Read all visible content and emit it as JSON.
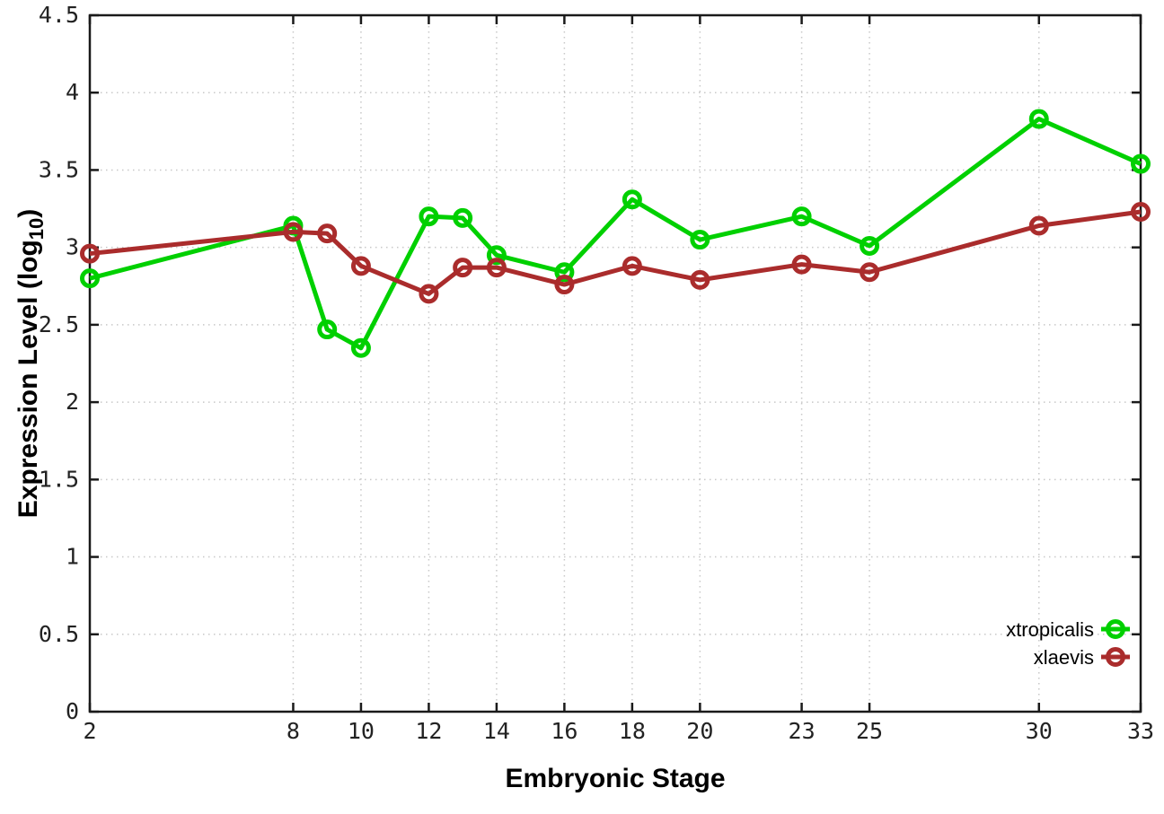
{
  "page": {
    "background": "#ffffff"
  },
  "chart_data": {
    "type": "line",
    "title": "",
    "xlabel": "Embryonic Stage",
    "ylabel": {
      "prefix": "Expression Level (log",
      "subscript": "10",
      "suffix": ")"
    },
    "xlim": [
      2,
      33
    ],
    "ylim": [
      0,
      4.5
    ],
    "grid": true,
    "grid_color": "#c8c8c8",
    "axis_color": "#1a1a1a",
    "xticks": {
      "values": [
        2,
        8,
        10,
        12,
        14,
        16,
        18,
        20,
        23,
        25,
        30,
        33
      ],
      "labels": [
        "2",
        "8",
        "10",
        "12",
        "14",
        "16",
        "18",
        "20",
        "23",
        "25",
        "30",
        "33"
      ]
    },
    "yticks": {
      "values": [
        0,
        0.5,
        1,
        1.5,
        2,
        2.5,
        3,
        3.5,
        4,
        4.5
      ],
      "labels": [
        "0",
        "0.5",
        "1",
        "1.5",
        "2",
        "2.5",
        "3",
        "3.5",
        "4",
        "4.5"
      ]
    },
    "x": [
      2,
      8,
      9,
      10,
      12,
      13,
      14,
      16,
      18,
      20,
      23,
      25,
      30,
      33
    ],
    "series": [
      {
        "name": "xtropicalis",
        "color": "#00D000",
        "marker": "open-circle",
        "values": [
          2.8,
          3.14,
          2.47,
          2.35,
          3.2,
          3.19,
          2.95,
          2.84,
          3.31,
          3.05,
          3.2,
          3.01,
          3.83,
          3.54
        ]
      },
      {
        "name": "xlaevis",
        "color": "#AA2C2C",
        "marker": "open-circle",
        "values": [
          2.96,
          3.1,
          3.09,
          2.88,
          2.7,
          2.87,
          2.87,
          2.76,
          2.88,
          2.79,
          2.89,
          2.84,
          3.14,
          3.23
        ]
      }
    ],
    "legend_position": "bottom-right"
  }
}
